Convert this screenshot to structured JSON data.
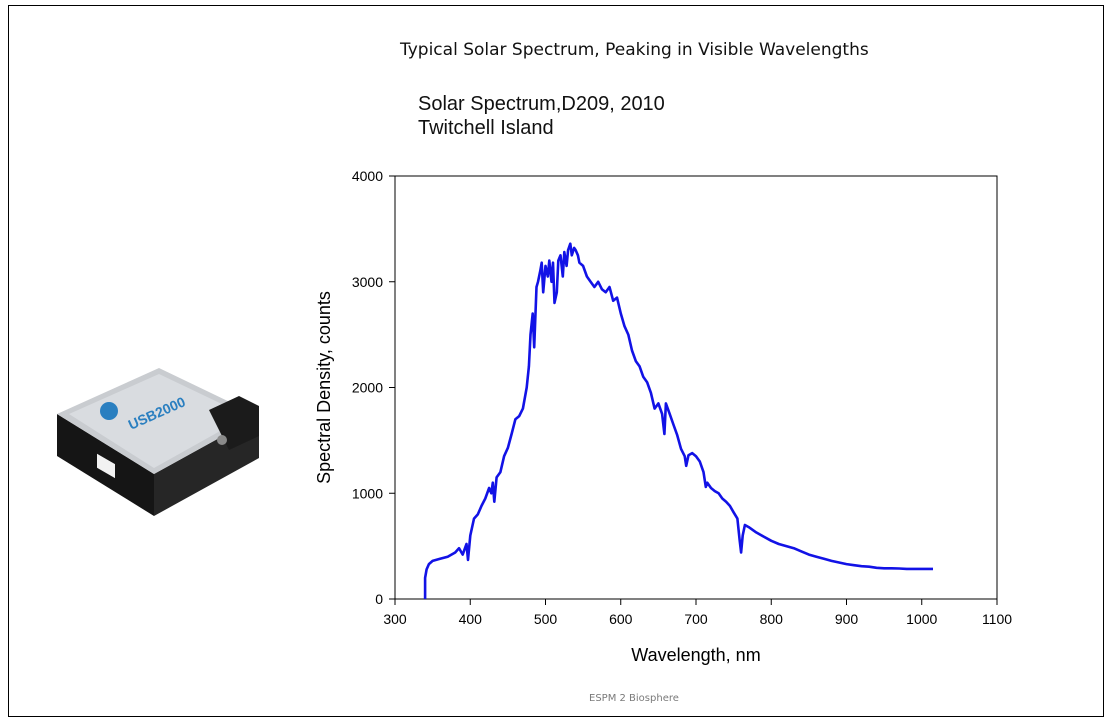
{
  "slide": {
    "heading": "Typical Solar Spectrum, Peaking in Visible Wavelengths",
    "footer": "ESPM 2 Biosphere"
  },
  "device_image": {
    "icon": "spectrometer-device-photo",
    "logo_text": "USB2000",
    "colors": {
      "body": "#1c1c1c",
      "top_plate": "#c9ccd0",
      "logo": "#2a7fc0"
    }
  },
  "chart_data": {
    "type": "line",
    "title_lines": [
      "Solar Spectrum,D209, 2010",
      "Twitchell Island"
    ],
    "xlabel": "Wavelength, nm",
    "ylabel": "Spectral Density, counts",
    "xlim": [
      300,
      1100
    ],
    "ylim": [
      0,
      4000
    ],
    "xticks": [
      300,
      400,
      500,
      600,
      700,
      800,
      900,
      1000,
      1100
    ],
    "yticks": [
      0,
      1000,
      2000,
      3000,
      4000
    ],
    "grid": false,
    "legend": "none",
    "series": [
      {
        "color": "#1212e6",
        "x": [
          340,
          340,
          342,
          345,
          350,
          360,
          370,
          380,
          385,
          390,
          395,
          397,
          400,
          405,
          410,
          415,
          420,
          425,
          428,
          430,
          432,
          435,
          440,
          445,
          450,
          455,
          460,
          465,
          470,
          475,
          478,
          480,
          483,
          485,
          488,
          490,
          493,
          495,
          497,
          500,
          503,
          505,
          508,
          510,
          512,
          515,
          517,
          520,
          523,
          525,
          528,
          530,
          533,
          535,
          538,
          540,
          543,
          545,
          550,
          555,
          560,
          565,
          570,
          575,
          580,
          585,
          590,
          595,
          600,
          605,
          610,
          615,
          620,
          625,
          630,
          635,
          640,
          645,
          650,
          655,
          658,
          660,
          665,
          670,
          675,
          680,
          685,
          687,
          690,
          695,
          700,
          705,
          710,
          713,
          715,
          720,
          725,
          730,
          735,
          740,
          745,
          750,
          755,
          758,
          760,
          762,
          765,
          770,
          780,
          790,
          800,
          810,
          820,
          830,
          840,
          850,
          860,
          870,
          880,
          890,
          900,
          910,
          920,
          930,
          940,
          950,
          960,
          970,
          980,
          990,
          1000,
          1010,
          1015
        ],
        "y": [
          0,
          200,
          280,
          330,
          360,
          380,
          400,
          440,
          480,
          420,
          520,
          370,
          600,
          760,
          800,
          880,
          950,
          1050,
          1000,
          1100,
          920,
          1150,
          1200,
          1350,
          1430,
          1560,
          1700,
          1730,
          1800,
          2000,
          2200,
          2500,
          2700,
          2380,
          2950,
          3000,
          3100,
          3180,
          2900,
          3150,
          3050,
          3200,
          3000,
          3180,
          2800,
          2900,
          3200,
          3250,
          3050,
          3280,
          3150,
          3300,
          3360,
          3250,
          3320,
          3300,
          3250,
          3180,
          3150,
          3050,
          3000,
          2950,
          3000,
          2930,
          2900,
          2950,
          2820,
          2850,
          2700,
          2580,
          2500,
          2350,
          2250,
          2200,
          2100,
          2050,
          1950,
          1800,
          1850,
          1750,
          1560,
          1850,
          1750,
          1650,
          1550,
          1420,
          1350,
          1260,
          1360,
          1380,
          1350,
          1300,
          1200,
          1060,
          1100,
          1050,
          1020,
          1000,
          950,
          920,
          880,
          820,
          760,
          560,
          440,
          600,
          700,
          680,
          630,
          590,
          550,
          520,
          500,
          480,
          450,
          420,
          400,
          380,
          360,
          345,
          330,
          320,
          310,
          305,
          295,
          290,
          290,
          288,
          285,
          285,
          285,
          285,
          285
        ]
      }
    ]
  }
}
